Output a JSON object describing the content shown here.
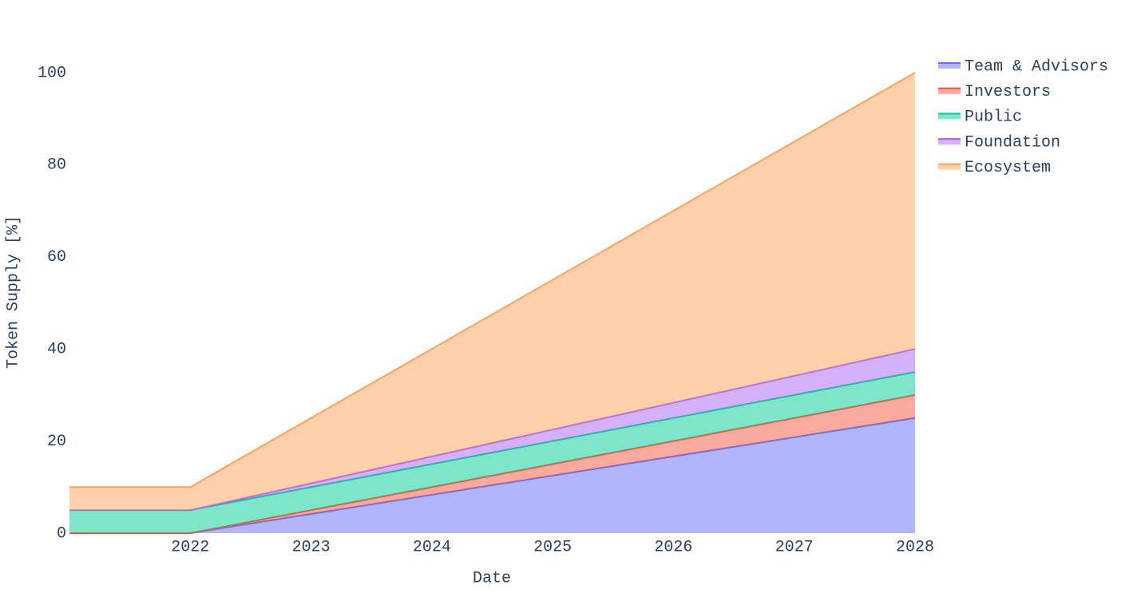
{
  "chart_data": {
    "type": "stacked_area",
    "x_label": "Date",
    "y_label": "Token Supply [%]",
    "x": [
      2021,
      2022,
      2028
    ],
    "series": [
      {
        "name": "Team & Advisors",
        "color": "#636efa",
        "values": [
          0,
          0,
          25
        ]
      },
      {
        "name": "Investors",
        "color": "#EF553B",
        "values": [
          0,
          0,
          5
        ]
      },
      {
        "name": "Public",
        "color": "#00cc96",
        "values": [
          5,
          5,
          5
        ]
      },
      {
        "name": "Foundation",
        "color": "#ab63fa",
        "values": [
          0,
          0,
          5
        ]
      },
      {
        "name": "Ecosystem",
        "color": "#FFA15A",
        "values": [
          5,
          5,
          60
        ]
      }
    ],
    "xlim": [
      2021,
      2028
    ],
    "xticks": [
      2022,
      2023,
      2024,
      2025,
      2026,
      2027,
      2028
    ],
    "ylim": [
      0,
      100
    ],
    "yticks": [
      0,
      20,
      40,
      60,
      80,
      100
    ],
    "grid": false,
    "legend": "right"
  }
}
